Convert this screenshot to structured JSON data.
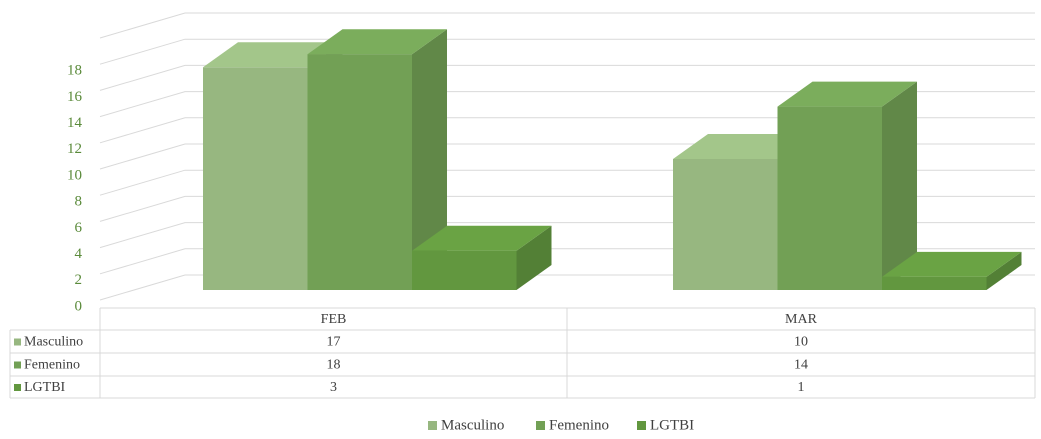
{
  "chart_data": {
    "type": "bar3d",
    "categories": [
      "FEB",
      "MAR"
    ],
    "series": [
      {
        "name": "Masculino",
        "color": "#97b780",
        "values": [
          17,
          10
        ]
      },
      {
        "name": "Femenino",
        "color": "#72a055",
        "values": [
          18,
          14
        ]
      },
      {
        "name": "LGTBI",
        "color": "#62973f",
        "values": [
          3,
          1
        ]
      }
    ],
    "ylim": [
      0,
      20
    ],
    "yticks": [
      0,
      2,
      4,
      6,
      8,
      10,
      12,
      14,
      16,
      18
    ],
    "grid": true,
    "legend": "bottom",
    "data_table": true
  }
}
